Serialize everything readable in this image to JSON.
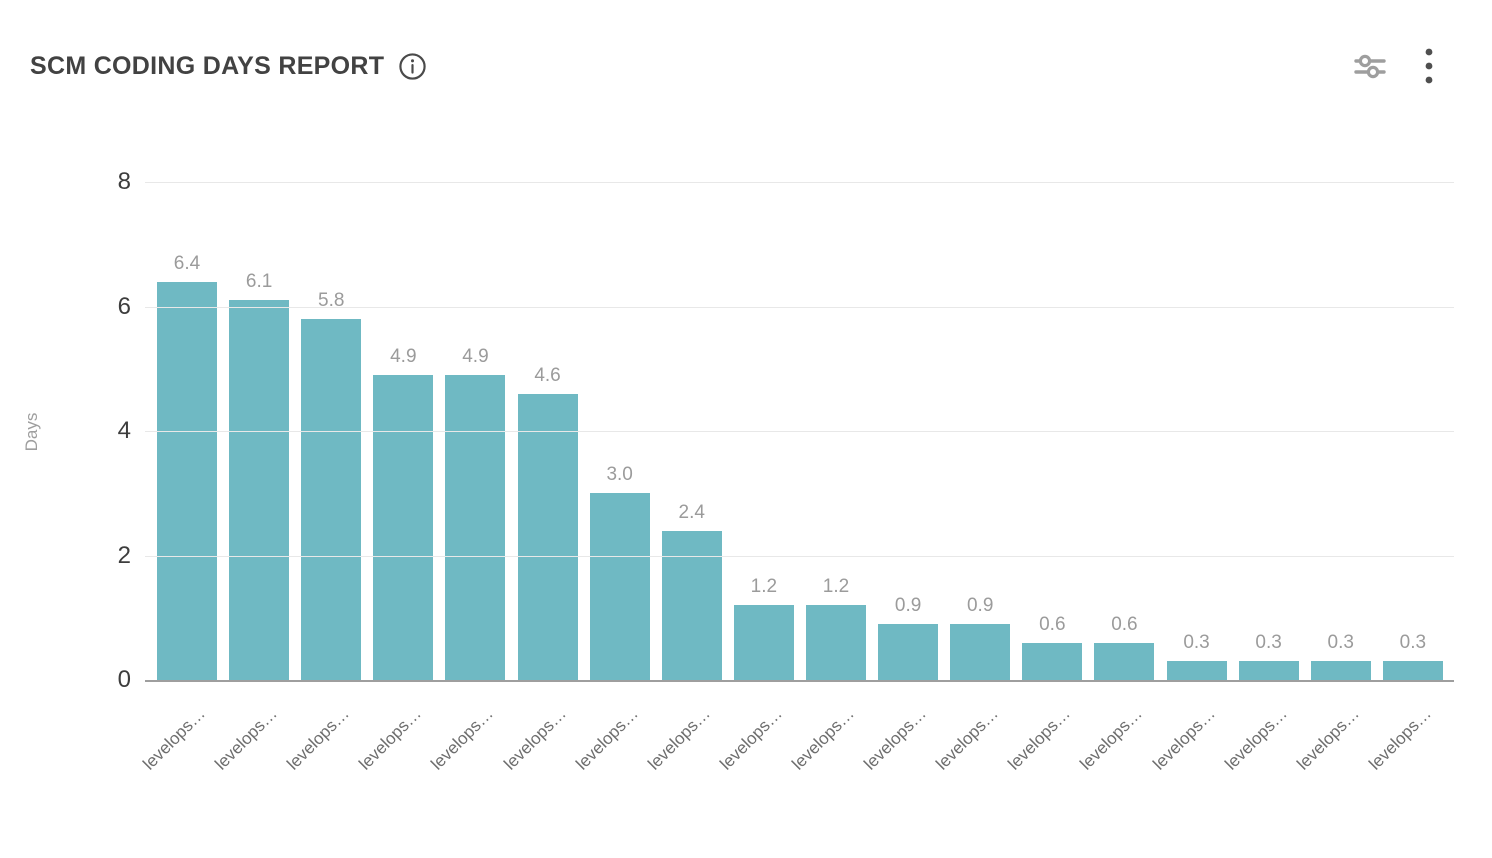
{
  "header": {
    "title": "SCM CODING DAYS REPORT",
    "icons": {
      "info": "info-circle",
      "filter": "filter-sliders",
      "menu": "kebab-menu"
    }
  },
  "chart_data": {
    "type": "bar",
    "title": "SCM CODING DAYS REPORT",
    "xlabel": "",
    "ylabel": "Days",
    "ylim": [
      0,
      8
    ],
    "yticks": [
      0,
      2,
      4,
      6,
      8
    ],
    "grid": true,
    "legend": false,
    "categories": [
      "levelops…",
      "levelops…",
      "levelops…",
      "levelops…",
      "levelops…",
      "levelops…",
      "levelops…",
      "levelops…",
      "levelops…",
      "levelops…",
      "levelops…",
      "levelops…",
      "levelops…",
      "levelops…",
      "levelops…",
      "levelops…",
      "levelops…",
      "levelops…"
    ],
    "values": [
      6.4,
      6.1,
      5.8,
      4.9,
      4.9,
      4.6,
      3.0,
      2.4,
      1.2,
      1.2,
      0.9,
      0.9,
      0.6,
      0.6,
      0.3,
      0.3,
      0.3,
      0.3
    ],
    "value_labels": [
      "6.4",
      "6.1",
      "5.8",
      "4.9",
      "4.9",
      "4.6",
      "3.0",
      "2.4",
      "1.2",
      "1.2",
      "0.9",
      "0.9",
      "0.6",
      "0.6",
      "0.3",
      "0.3",
      "0.3",
      "0.3"
    ]
  },
  "colors": {
    "bar": "#6FB9C3",
    "gridline": "#e8e8e8",
    "axis_line": "#9e9e9e",
    "value_label": "#9b9b9b",
    "tick_label": "#3d3d3d",
    "x_label": "#6e6e6e",
    "title": "#424242"
  }
}
